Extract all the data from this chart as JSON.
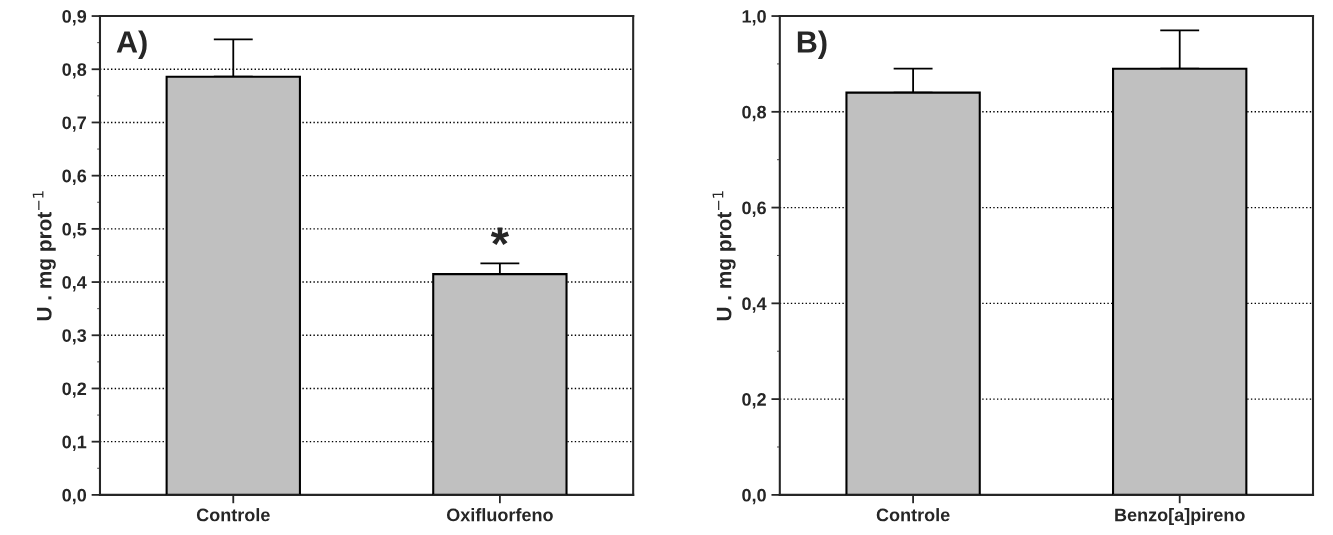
{
  "chart_data": [
    {
      "type": "bar",
      "title": "A)",
      "ylabel": "U . mg prot$^{−1}$",
      "categories": [
        "Controle",
        "Oxifluorfeno"
      ],
      "color": "#c0c0c0",
      "values": [
        0.786,
        0.415
      ],
      "errors": [
        [
          0.786,
          0.856
        ],
        [
          0.415,
          0.435
        ]
      ],
      "ylim": [
        0,
        0.9
      ],
      "yticks": [
        {
          "value": 0,
          "label": "0,0"
        },
        {
          "value": 0.1,
          "label": "0,1"
        },
        {
          "value": 0.2,
          "label": "0,2"
        },
        {
          "value": 0.3,
          "label": "0,3"
        },
        {
          "value": 0.4,
          "label": "0,4"
        },
        {
          "value": 0.5,
          "label": "0,5"
        },
        {
          "value": 0.6,
          "label": "0,6"
        },
        {
          "value": 0.7,
          "label": "0,7"
        },
        {
          "value": 0.8,
          "label": "0,8"
        },
        {
          "value": 0.9,
          "label": "0,9"
        }
      ],
      "grid": "y",
      "annotations": [
        "*"
      ]
    },
    {
      "type": "bar",
      "title": "B)",
      "ylabel": "U . mg prot$^{−1}$",
      "categories": [
        "Controle",
        "Benzo[a]pireno"
      ],
      "color": "#c0c0c0",
      "values": [
        0.84,
        0.89
      ],
      "errors": [
        [
          0.84,
          0.89
        ],
        [
          0.89,
          0.97
        ]
      ],
      "ylim": [
        0,
        1.0
      ],
      "yticks": [
        {
          "value": 0,
          "label": "0,0"
        },
        {
          "value": 0.2,
          "label": "0,2"
        },
        {
          "value": 0.4,
          "label": "0,4"
        },
        {
          "value": 0.6,
          "label": "0,6"
        },
        {
          "value": 0.8,
          "label": "0,8"
        },
        {
          "value": 1.0,
          "label": "1,0"
        }
      ],
      "grid": "y"
    }
  ]
}
